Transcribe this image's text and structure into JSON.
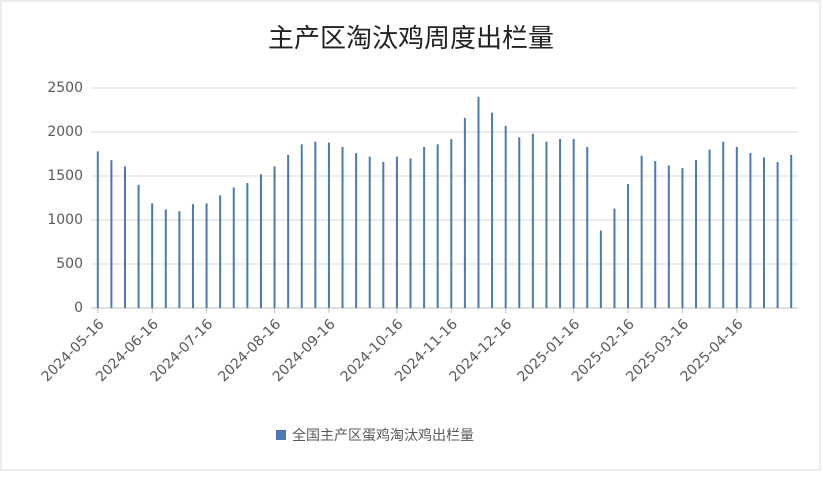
{
  "chart_data": {
    "type": "bar",
    "title": "主产区淘汰鸡周度出栏量",
    "categories": [
      "2024-05-16",
      null,
      null,
      null,
      "2024-06-16",
      null,
      null,
      null,
      "2024-07-16",
      null,
      null,
      null,
      null,
      "2024-08-16",
      null,
      null,
      null,
      "2024-09-16",
      null,
      null,
      null,
      null,
      "2024-10-16",
      null,
      null,
      null,
      "2024-11-16",
      null,
      null,
      null,
      "2024-12-16",
      null,
      null,
      null,
      null,
      "2025-01-16",
      null,
      null,
      null,
      "2025-02-16",
      null,
      null,
      null,
      "2025-03-16",
      null,
      null,
      null,
      "2025-04-16",
      null,
      null,
      null,
      null
    ],
    "series": [
      {
        "name": "全国主产区蛋鸡淘汰鸡出栏量",
        "color": "#4a7ab0",
        "values": [
          1780,
          1680,
          1610,
          1400,
          1190,
          1120,
          1100,
          1180,
          1190,
          1280,
          1370,
          1420,
          1520,
          1610,
          1740,
          1860,
          1890,
          1880,
          1830,
          1760,
          1720,
          1660,
          1720,
          1700,
          1830,
          1860,
          1920,
          2160,
          2400,
          2220,
          2070,
          1940,
          1980,
          1890,
          1920,
          1920,
          1830,
          880,
          1130,
          1410,
          1730,
          1670,
          1620,
          1590,
          1680,
          1800,
          1890,
          1830,
          1760,
          1710,
          1660,
          1740
        ]
      }
    ],
    "ylim": [
      0,
      2500
    ],
    "yticks": [
      0,
      500,
      1000,
      1500,
      2000,
      2500
    ],
    "grid": true,
    "legend": "bottom"
  }
}
